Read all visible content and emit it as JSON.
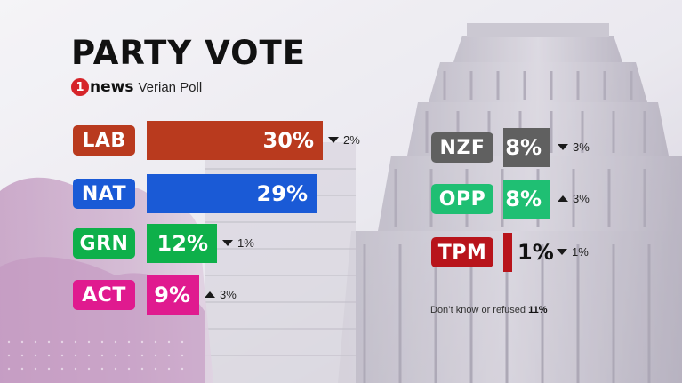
{
  "title": "PARTY VOTE",
  "brand": {
    "logo_number": "1",
    "logo_word": "news",
    "poll_name": "Verian Poll"
  },
  "colors": {
    "LAB": "#b93a1e",
    "NAT": "#1a5ad6",
    "GRN": "#0eb04a",
    "ACT": "#e01a8f",
    "NZF": "#606060",
    "OPP": "#1fbf73",
    "TPM": "#b8141b"
  },
  "footnote": {
    "text": "Don’t know or refused",
    "value": "11%"
  },
  "chart_data": {
    "type": "bar",
    "title": "PARTY VOTE",
    "categories": [
      "LAB",
      "NAT",
      "GRN",
      "ACT",
      "NZF",
      "OPP",
      "TPM"
    ],
    "values": [
      30,
      29,
      12,
      9,
      8,
      8,
      1
    ],
    "value_labels": [
      "30%",
      "29%",
      "12%",
      "9%",
      "8%",
      "8%",
      "1%"
    ],
    "changes": [
      {
        "direction": "down",
        "label": "2%"
      },
      {
        "direction": "none",
        "label": ""
      },
      {
        "direction": "down",
        "label": "1%"
      },
      {
        "direction": "up",
        "label": "3%"
      },
      {
        "direction": "down",
        "label": "3%"
      },
      {
        "direction": "up",
        "label": "3%"
      },
      {
        "direction": "down",
        "label": "1%"
      }
    ],
    "unit": "%",
    "orientation": "horizontal",
    "columns": [
      [
        "LAB",
        "NAT",
        "GRN",
        "ACT"
      ],
      [
        "NZF",
        "OPP",
        "TPM"
      ]
    ],
    "grid": false,
    "legend": "none",
    "footnote": "Don’t know or refused 11%"
  }
}
